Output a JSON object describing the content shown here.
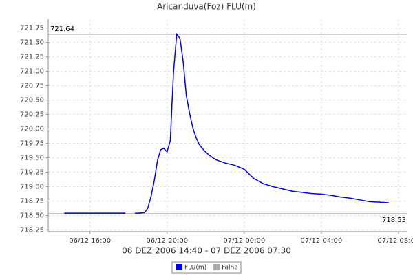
{
  "chart_data": {
    "type": "line",
    "title": "Aricanduva(Foz) FLU(m)",
    "x_label": "06 DEZ 2006 14:40 - 07 DEZ 2006 07:30",
    "x": [
      "2006-12-06 14:40",
      "2006-12-06 15:00",
      "2006-12-06 15:30",
      "2006-12-06 16:00",
      "2006-12-06 16:30",
      "2006-12-06 17:00",
      "2006-12-06 17:30",
      "2006-12-06 17:50",
      "2006-12-06 18:00",
      "2006-12-06 18:20",
      "2006-12-06 18:30",
      "2006-12-06 18:50",
      "2006-12-06 19:00",
      "2006-12-06 19:10",
      "2006-12-06 19:20",
      "2006-12-06 19:30",
      "2006-12-06 19:40",
      "2006-12-06 19:50",
      "2006-12-06 20:00",
      "2006-12-06 20:10",
      "2006-12-06 20:20",
      "2006-12-06 20:30",
      "2006-12-06 20:40",
      "2006-12-06 20:50",
      "2006-12-06 21:00",
      "2006-12-06 21:10",
      "2006-12-06 21:20",
      "2006-12-06 21:30",
      "2006-12-06 21:40",
      "2006-12-06 21:50",
      "2006-12-06 22:00",
      "2006-12-06 22:10",
      "2006-12-06 22:20",
      "2006-12-06 22:30",
      "2006-12-06 23:00",
      "2006-12-06 23:30",
      "2006-12-07 00:00",
      "2006-12-07 00:30",
      "2006-12-07 01:00",
      "2006-12-07 01:30",
      "2006-12-07 02:00",
      "2006-12-07 02:30",
      "2006-12-07 03:00",
      "2006-12-07 03:30",
      "2006-12-07 04:00",
      "2006-12-07 04:30",
      "2006-12-07 05:00",
      "2006-12-07 05:30",
      "2006-12-07 06:00",
      "2006-12-07 06:30",
      "2006-12-07 07:00",
      "2006-12-07 07:30"
    ],
    "series": [
      {
        "name": "FLU(m)",
        "color": "#0000ee",
        "values": [
          718.54,
          718.54,
          718.54,
          718.54,
          718.54,
          718.54,
          718.54,
          718.54,
          null,
          718.54,
          718.54,
          718.55,
          718.63,
          718.83,
          719.1,
          719.45,
          719.64,
          719.66,
          719.6,
          719.8,
          720.99,
          721.64,
          721.57,
          721.17,
          720.57,
          720.27,
          720.02,
          719.85,
          719.73,
          719.66,
          719.6,
          719.55,
          719.51,
          719.47,
          719.41,
          719.37,
          719.3,
          719.14,
          719.05,
          719.0,
          718.96,
          718.92,
          718.9,
          718.88,
          718.87,
          718.85,
          718.82,
          718.8,
          718.77,
          718.74,
          718.73,
          718.72
        ]
      },
      {
        "name": "Falha",
        "color": "#aaaaaa",
        "values": [
          null,
          null,
          null,
          null,
          null,
          null,
          null,
          718.53,
          718.53,
          718.53,
          null,
          null,
          null,
          null,
          null,
          null,
          null,
          null,
          null,
          null,
          null,
          null,
          null,
          null,
          null,
          null,
          null,
          null,
          null,
          null,
          null,
          null,
          null,
          null,
          null,
          null,
          null,
          null,
          null,
          null,
          null,
          null,
          null,
          null,
          null,
          null,
          null,
          null,
          null,
          null,
          null,
          null
        ]
      }
    ],
    "markers": [
      721.64,
      718.53
    ],
    "xlim": [
      "2006-12-06 13:50",
      "2006-12-07 08:28"
    ],
    "xticks": [
      {
        "value": "2006-12-06 16:00",
        "label": "06/12 16:00"
      },
      {
        "value": "2006-12-06 20:00",
        "label": "06/12 20:00"
      },
      {
        "value": "2006-12-07 00:00",
        "label": "07/12 00:00"
      },
      {
        "value": "2006-12-07 04:00",
        "label": "07/12 04:00"
      },
      {
        "value": "2006-12-07 08:00",
        "label": "07/12 08:00"
      }
    ],
    "ylim": [
      718.22,
      721.9
    ],
    "yticks": [
      718.25,
      {
        "value": 718.5,
        "label": "718.50"
      },
      718.75,
      {
        "value": 719,
        "label": "719.00"
      },
      719.25,
      {
        "value": 719.5,
        "label": "719.50"
      },
      719.75,
      {
        "value": 720,
        "label": "720.00"
      },
      720.25,
      {
        "value": 720.5,
        "label": "720.50"
      },
      720.75,
      {
        "value": 721,
        "label": "721.00"
      },
      721.25,
      {
        "value": 721.5,
        "label": "721.50"
      },
      721.75
    ],
    "grid": true
  }
}
